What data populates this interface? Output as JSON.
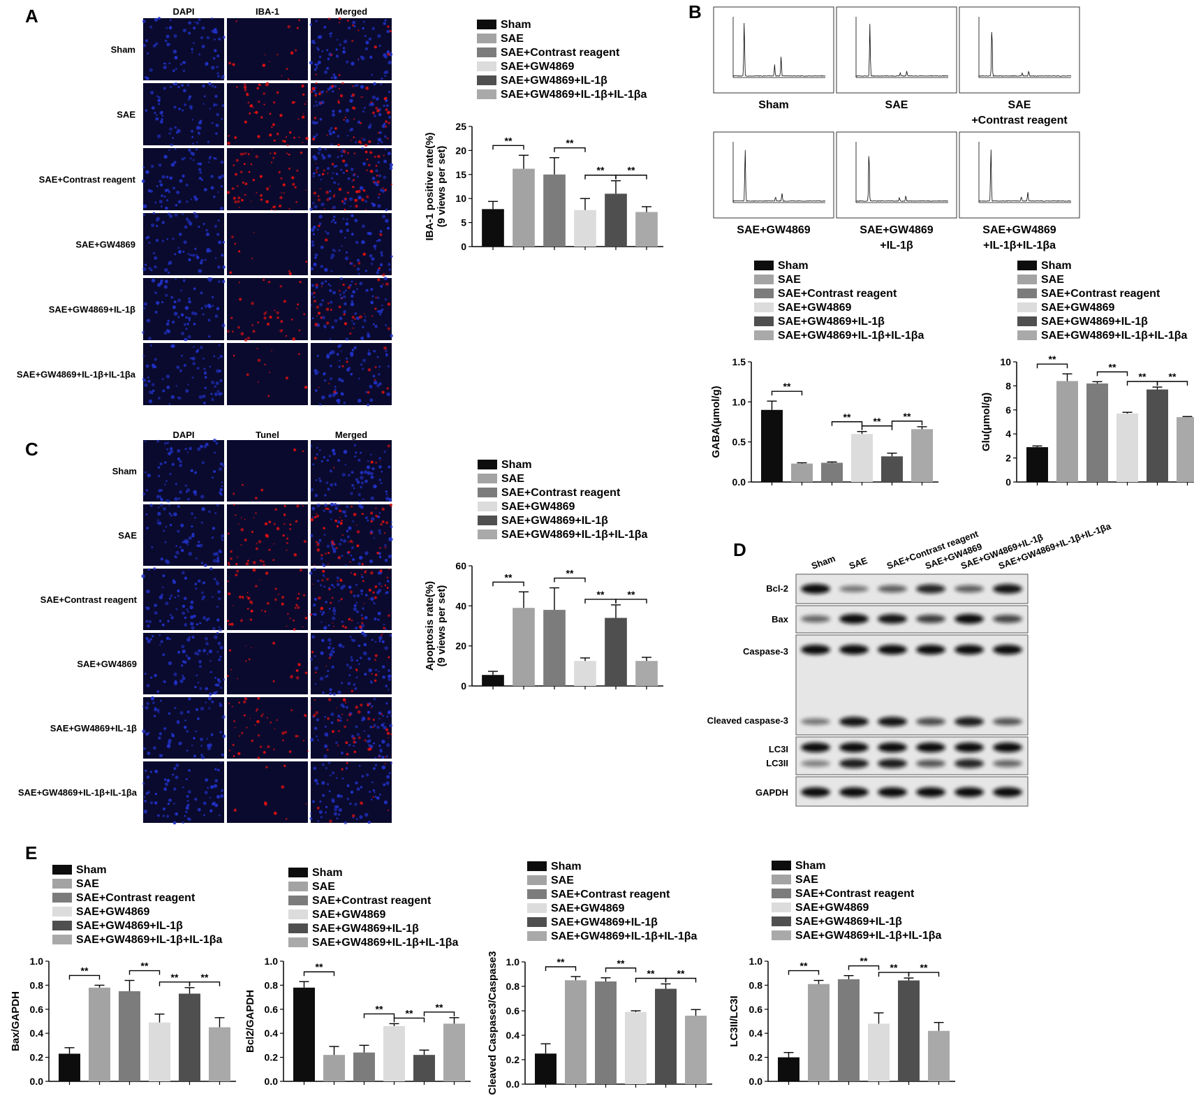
{
  "panel_letters": {
    "A": "A",
    "B": "B",
    "C": "C",
    "D": "D",
    "E": "E"
  },
  "colors": {
    "group_fills": [
      "#0d0d0d",
      "#a3a3a3",
      "#7c7c7c",
      "#dcdcdc",
      "#4f4f4f",
      "#a9a9a9"
    ],
    "micro_bg": "#0a0a2e",
    "dapi": "#2233cc",
    "stain": "#dd1111"
  },
  "groups": [
    "Sham",
    "SAE",
    "SAE+Contrast reagent",
    "SAE+GW4869",
    "SAE+GW4869+IL-1β",
    "SAE+GW4869+IL-1β+IL-1βa"
  ],
  "panelA": {
    "columns": [
      "DAPI",
      "IBA-1",
      "Merged"
    ],
    "rows": [
      "Sham",
      "SAE",
      "SAE+Contrast reagent",
      "SAE+GW4869",
      "SAE+GW4869+IL-1β",
      "SAE+GW4869+IL-1β+IL-1βa"
    ]
  },
  "panelC": {
    "columns": [
      "DAPI",
      "Tunel",
      "Merged"
    ],
    "rows": [
      "Sham",
      "SAE",
      "SAE+Contrast reagent",
      "SAE+GW4869",
      "SAE+GW4869+IL-1β",
      "SAE+GW4869+IL-1β+IL-1βa"
    ]
  },
  "panelB": {
    "chromatograms": [
      {
        "label": [
          "Sham"
        ],
        "peaks": [
          [
            0.12,
            0.95
          ],
          [
            0.45,
            0.2
          ],
          [
            0.52,
            0.35
          ]
        ]
      },
      {
        "label": [
          "SAE"
        ],
        "peaks": [
          [
            0.15,
            0.9
          ],
          [
            0.48,
            0.06
          ],
          [
            0.55,
            0.08
          ]
        ]
      },
      {
        "label": [
          "SAE",
          "+Contrast reagent"
        ],
        "peaks": [
          [
            0.14,
            0.9
          ],
          [
            0.47,
            0.05
          ],
          [
            0.54,
            0.09
          ]
        ]
      },
      {
        "label": [
          "SAE+GW4869"
        ],
        "peaks": [
          [
            0.13,
            0.92
          ],
          [
            0.46,
            0.08
          ],
          [
            0.53,
            0.14
          ]
        ]
      },
      {
        "label": [
          "SAE+GW4869",
          "+IL-1β"
        ],
        "peaks": [
          [
            0.14,
            0.92
          ],
          [
            0.47,
            0.06
          ],
          [
            0.54,
            0.1
          ]
        ]
      },
      {
        "label": [
          "SAE+GW4869",
          "+IL-1β+IL-1βa"
        ],
        "peaks": [
          [
            0.13,
            0.93
          ],
          [
            0.46,
            0.08
          ],
          [
            0.53,
            0.16
          ]
        ]
      }
    ]
  },
  "panelD": {
    "lane_labels": [
      "Sham",
      "SAE",
      "SAE+Contrast reagent",
      "SAE+GW4869",
      "SAE+GW4869+IL-1β",
      "SAE+GW4869+IL-1β+IL-1βa"
    ],
    "bands": [
      {
        "label": "Bcl-2",
        "intensity": [
          1.0,
          0.35,
          0.5,
          0.85,
          0.5,
          0.95
        ]
      },
      {
        "label": "Bax",
        "intensity": [
          0.45,
          1.0,
          0.95,
          0.7,
          1.0,
          0.65
        ]
      },
      {
        "label": "Caspase-3",
        "intensity": [
          1.0,
          1.0,
          1.0,
          1.0,
          1.0,
          1.0
        ]
      },
      {
        "label": "Cleaved caspase-3",
        "intensity": [
          0.35,
          0.95,
          0.95,
          0.6,
          0.9,
          0.55
        ]
      },
      {
        "label": "LC3I",
        "intensity": [
          1.0,
          1.0,
          1.0,
          1.0,
          1.0,
          1.0
        ]
      },
      {
        "label": "LC3II",
        "intensity": [
          0.3,
          0.9,
          0.9,
          0.55,
          0.85,
          0.45
        ]
      },
      {
        "label": "GAPDH",
        "intensity": [
          1.0,
          1.0,
          1.0,
          1.0,
          1.0,
          1.0
        ]
      }
    ]
  },
  "chart_data": [
    {
      "type": "bar",
      "panel": "A",
      "categories": [
        "Sham",
        "SAE",
        "SAE+Contrast reagent",
        "SAE+GW4869",
        "SAE+GW4869+IL-1β",
        "SAE+GW4869+IL-1β+IL-1βa"
      ],
      "values": [
        7.8,
        16.2,
        15.0,
        7.6,
        11.0,
        7.2
      ],
      "errors": [
        1.6,
        2.8,
        3.5,
        2.4,
        2.7,
        1.1
      ],
      "ylabel": [
        "IBA-1 positive rate(%)",
        "(9 views per set)"
      ],
      "ylim": [
        0,
        25
      ],
      "yticks": [
        0,
        5,
        10,
        15,
        20,
        25
      ],
      "ytick_labels": [
        "0",
        "5",
        "10",
        "15",
        "20",
        "25"
      ],
      "significance": [
        {
          "pair": [
            0,
            1
          ],
          "label": "**"
        },
        {
          "pair": [
            2,
            3
          ],
          "label": "**"
        },
        {
          "pair": [
            3,
            4
          ],
          "label": "**"
        },
        {
          "pair": [
            4,
            5
          ],
          "label": "**"
        }
      ]
    },
    {
      "type": "bar",
      "panel": "B",
      "categories": [
        "Sham",
        "SAE",
        "SAE+Contrast reagent",
        "SAE+GW4869",
        "SAE+GW4869+IL-1β",
        "SAE+GW4869+IL-1β+IL-1βa"
      ],
      "values": [
        0.9,
        0.23,
        0.24,
        0.6,
        0.32,
        0.66
      ],
      "errors": [
        0.11,
        0.01,
        0.01,
        0.03,
        0.04,
        0.03
      ],
      "ylabel": [
        "GABA(μmol/g)"
      ],
      "ylim": [
        0,
        1.5
      ],
      "yticks": [
        0,
        0.5,
        1.0,
        1.5
      ],
      "ytick_labels": [
        "0.0",
        "0.5",
        "1.0",
        "1.5"
      ],
      "significance": [
        {
          "pair": [
            0,
            1
          ],
          "label": "**"
        },
        {
          "pair": [
            2,
            3
          ],
          "label": "**"
        },
        {
          "pair": [
            3,
            4
          ],
          "label": "**"
        },
        {
          "pair": [
            4,
            5
          ],
          "label": "**"
        }
      ]
    },
    {
      "type": "bar",
      "panel": "B",
      "categories": [
        "Sham",
        "SAE",
        "SAE+Contrast reagent",
        "SAE+GW4869",
        "SAE+GW4869+IL-1β",
        "SAE+GW4869+IL-1β+IL-1βa"
      ],
      "values": [
        2.9,
        8.4,
        8.2,
        5.7,
        7.7,
        5.4
      ],
      "errors": [
        0.1,
        0.6,
        0.15,
        0.1,
        0.2,
        0.05
      ],
      "ylabel": [
        "Glu(μmol/g)"
      ],
      "ylim": [
        0,
        10
      ],
      "yticks": [
        0,
        2,
        4,
        6,
        8,
        10
      ],
      "ytick_labels": [
        "0",
        "2",
        "4",
        "6",
        "8",
        "10"
      ],
      "significance": [
        {
          "pair": [
            0,
            1
          ],
          "label": "**"
        },
        {
          "pair": [
            2,
            3
          ],
          "label": "**"
        },
        {
          "pair": [
            3,
            4
          ],
          "label": "**"
        },
        {
          "pair": [
            4,
            5
          ],
          "label": "**"
        }
      ]
    },
    {
      "type": "bar",
      "panel": "C",
      "categories": [
        "Sham",
        "SAE",
        "SAE+Contrast reagent",
        "SAE+GW4869",
        "SAE+GW4869+IL-1β",
        "SAE+GW4869+IL-1β+IL-1βa"
      ],
      "values": [
        5.5,
        39.0,
        38.0,
        12.5,
        34.0,
        12.5
      ],
      "errors": [
        1.8,
        8.0,
        11.0,
        1.5,
        6.5,
        1.8
      ],
      "ylabel": [
        "Apoptosis rate(%)",
        "(9 views per set)"
      ],
      "ylim": [
        0,
        60
      ],
      "yticks": [
        0,
        20,
        40,
        60
      ],
      "ytick_labels": [
        "0",
        "20",
        "40",
        "60"
      ],
      "significance": [
        {
          "pair": [
            0,
            1
          ],
          "label": "**"
        },
        {
          "pair": [
            2,
            3
          ],
          "label": "**"
        },
        {
          "pair": [
            3,
            4
          ],
          "label": "**"
        },
        {
          "pair": [
            4,
            5
          ],
          "label": "**"
        }
      ]
    },
    {
      "type": "bar",
      "panel": "E",
      "categories": [
        "Sham",
        "SAE",
        "SAE+Contrast reagent",
        "SAE+GW4869",
        "SAE+GW4869+IL-1β",
        "SAE+GW4869+IL-1β+IL-1βa"
      ],
      "values": [
        0.23,
        0.78,
        0.75,
        0.49,
        0.73,
        0.45
      ],
      "errors": [
        0.05,
        0.02,
        0.09,
        0.07,
        0.05,
        0.08
      ],
      "ylabel": [
        "Bax/GAPDH"
      ],
      "ylim": [
        0,
        1.0
      ],
      "yticks": [
        0,
        0.2,
        0.4,
        0.6,
        0.8,
        1.0
      ],
      "ytick_labels": [
        "0.0",
        "0.2",
        "0.4",
        "0.6",
        "0.8",
        "1.0"
      ],
      "significance": [
        {
          "pair": [
            0,
            1
          ],
          "label": "**"
        },
        {
          "pair": [
            2,
            3
          ],
          "label": "**"
        },
        {
          "pair": [
            3,
            4
          ],
          "label": "**"
        },
        {
          "pair": [
            4,
            5
          ],
          "label": "**"
        }
      ]
    },
    {
      "type": "bar",
      "panel": "E",
      "categories": [
        "Sham",
        "SAE",
        "SAE+Contrast reagent",
        "SAE+GW4869",
        "SAE+GW4869+IL-1β",
        "SAE+GW4869+IL-1β+IL-1βa"
      ],
      "values": [
        0.78,
        0.22,
        0.24,
        0.46,
        0.22,
        0.48
      ],
      "errors": [
        0.05,
        0.07,
        0.06,
        0.02,
        0.04,
        0.05
      ],
      "ylabel": [
        "Bcl2/GAPDH"
      ],
      "ylim": [
        0,
        1.0
      ],
      "yticks": [
        0,
        0.2,
        0.4,
        0.6,
        0.8,
        1.0
      ],
      "ytick_labels": [
        "0.0",
        "0.2",
        "0.4",
        "0.6",
        "0.8",
        "1.0"
      ],
      "significance": [
        {
          "pair": [
            0,
            1
          ],
          "label": "**"
        },
        {
          "pair": [
            2,
            3
          ],
          "label": "**"
        },
        {
          "pair": [
            3,
            4
          ],
          "label": "**"
        },
        {
          "pair": [
            4,
            5
          ],
          "label": "**"
        }
      ]
    },
    {
      "type": "bar",
      "panel": "E",
      "categories": [
        "Sham",
        "SAE",
        "SAE+Contrast reagent",
        "SAE+GW4869",
        "SAE+GW4869+IL-1β",
        "SAE+GW4869+IL-1β+IL-1βa"
      ],
      "values": [
        0.25,
        0.85,
        0.84,
        0.59,
        0.78,
        0.56
      ],
      "errors": [
        0.08,
        0.03,
        0.03,
        0.01,
        0.04,
        0.05
      ],
      "ylabel": [
        "Cleaved Caspase3/Caspase3"
      ],
      "ylim": [
        0,
        1.0
      ],
      "yticks": [
        0,
        0.2,
        0.4,
        0.6,
        0.8,
        1.0
      ],
      "ytick_labels": [
        "0.0",
        "0.2",
        "0.4",
        "0.6",
        "0.8",
        "1.0"
      ],
      "significance": [
        {
          "pair": [
            0,
            1
          ],
          "label": "**"
        },
        {
          "pair": [
            2,
            3
          ],
          "label": "**"
        },
        {
          "pair": [
            3,
            4
          ],
          "label": "**"
        },
        {
          "pair": [
            4,
            5
          ],
          "label": "**"
        }
      ]
    },
    {
      "type": "bar",
      "panel": "E",
      "categories": [
        "Sham",
        "SAE",
        "SAE+Contrast reagent",
        "SAE+GW4869",
        "SAE+GW4869+IL-1β",
        "SAE+GW4869+IL-1β+IL-1βa"
      ],
      "values": [
        0.2,
        0.81,
        0.85,
        0.48,
        0.84,
        0.42
      ],
      "errors": [
        0.04,
        0.03,
        0.03,
        0.09,
        0.02,
        0.07
      ],
      "ylabel": [
        "LC3II/LC3I"
      ],
      "ylim": [
        0,
        1.0
      ],
      "yticks": [
        0,
        0.2,
        0.4,
        0.6,
        0.8,
        1.0
      ],
      "ytick_labels": [
        "0.0",
        "0.2",
        "0.4",
        "0.6",
        "0.8",
        "1.0"
      ],
      "significance": [
        {
          "pair": [
            0,
            1
          ],
          "label": "**"
        },
        {
          "pair": [
            2,
            3
          ],
          "label": "**"
        },
        {
          "pair": [
            3,
            4
          ],
          "label": "**"
        },
        {
          "pair": [
            4,
            5
          ],
          "label": "**"
        }
      ]
    }
  ]
}
